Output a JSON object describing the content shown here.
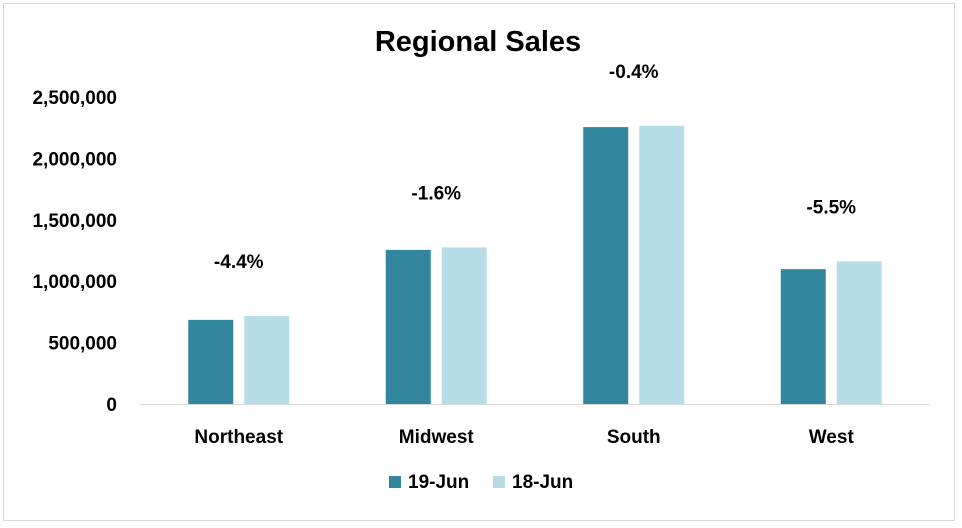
{
  "chart_data": {
    "type": "bar",
    "title": "Regional Sales",
    "xlabel": "",
    "ylabel": "",
    "categories": [
      "Northeast",
      "Midwest",
      "South",
      "West"
    ],
    "series": [
      {
        "name": "19-Jun",
        "color": "#31859c",
        "values": [
          685000,
          1255000,
          2255000,
          1098000
        ]
      },
      {
        "name": "18-Jun",
        "color": "#b7dde8",
        "values": [
          716000,
          1275000,
          2265000,
          1162000
        ]
      }
    ],
    "data_labels": [
      "-4.4%",
      "-1.6%",
      "-0.4%",
      "-5.5%"
    ],
    "ylim": [
      0,
      2500000
    ],
    "y_ticks": [
      0,
      500000,
      1000000,
      1500000,
      2000000,
      2500000
    ],
    "y_tick_labels": [
      "0",
      "500,000",
      "1,000,000",
      "1,500,000",
      "2,000,000",
      "2,500,000"
    ],
    "grid": false,
    "legend_position": "bottom"
  }
}
